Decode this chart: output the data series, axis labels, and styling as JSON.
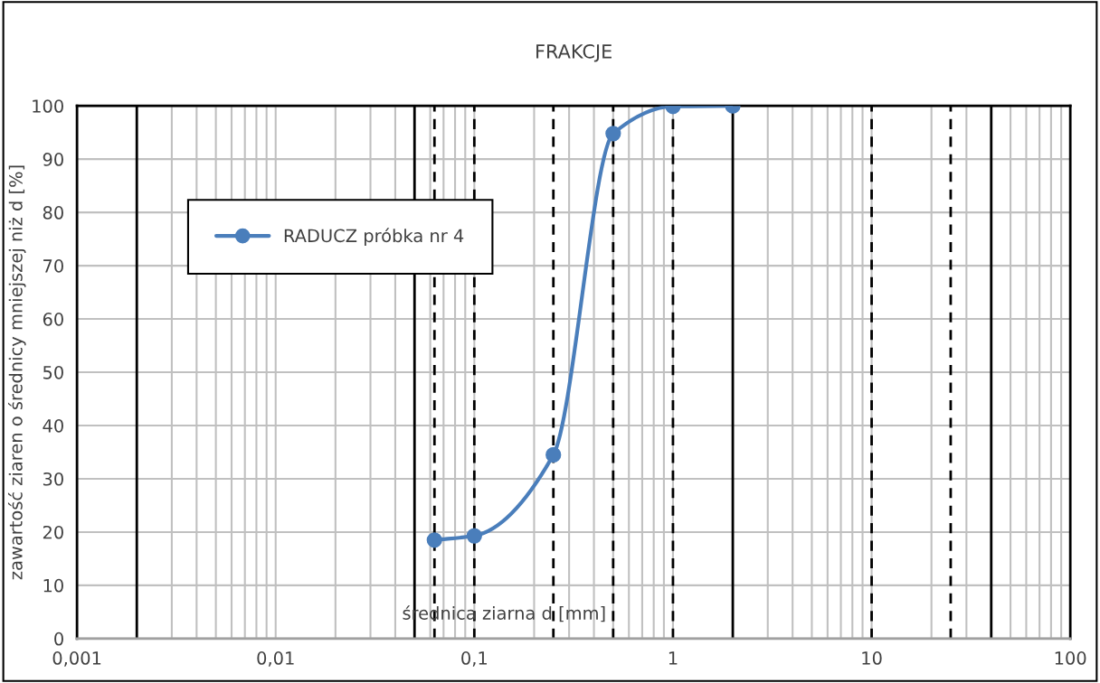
{
  "chart_data": {
    "type": "line",
    "title": "FRAKCJE",
    "xlabel": "średnica ziarna d [mm]",
    "ylabel": "zawartość ziaren o średnicy mniejszej niż d [%]",
    "log": "x",
    "x": [
      0.063,
      0.1,
      0.25,
      0.5,
      1,
      2
    ],
    "series": [
      {
        "name": "RADUCZ próbka nr 4",
        "color": "#4a7ebb",
        "values": [
          18.5,
          19.3,
          34.5,
          94.8,
          99.9,
          100
        ]
      }
    ],
    "marker": "circle",
    "line_style": "solid",
    "xlim": [
      0.001,
      100
    ],
    "xticks": [
      {
        "value": 0.001,
        "label": "0,001"
      },
      {
        "value": 0.01,
        "label": "0,01"
      },
      {
        "value": 0.1,
        "label": "0,1"
      },
      {
        "value": 1,
        "label": "1"
      },
      {
        "value": 10,
        "label": "10"
      },
      {
        "value": 100,
        "label": "100"
      }
    ],
    "ylim": [
      0,
      100
    ],
    "yticks": [
      0,
      10,
      20,
      30,
      40,
      50,
      60,
      70,
      80,
      90,
      100
    ],
    "grid": true,
    "legend": "top left",
    "ref_lines": [
      {
        "axis": "x",
        "value": 0.002,
        "color": "#000000",
        "line_style": "solid"
      },
      {
        "axis": "x",
        "value": 0.05,
        "color": "#000000",
        "line_style": "solid"
      },
      {
        "axis": "x",
        "value": 0.063,
        "color": "#000000",
        "line_style": "dashed"
      },
      {
        "axis": "x",
        "value": 0.1,
        "color": "#000000",
        "line_style": "dashed"
      },
      {
        "axis": "x",
        "value": 0.25,
        "color": "#000000",
        "line_style": "dashed"
      },
      {
        "axis": "x",
        "value": 0.5,
        "color": "#000000",
        "line_style": "dashed"
      },
      {
        "axis": "x",
        "value": 1,
        "color": "#000000",
        "line_style": "dashed"
      },
      {
        "axis": "x",
        "value": 2,
        "color": "#000000",
        "line_style": "solid"
      },
      {
        "axis": "x",
        "value": 10,
        "color": "#000000",
        "line_style": "dashed"
      },
      {
        "axis": "x",
        "value": 25,
        "color": "#000000",
        "line_style": "dashed"
      },
      {
        "axis": "x",
        "value": 40,
        "color": "#000000",
        "line_style": "solid"
      }
    ]
  }
}
